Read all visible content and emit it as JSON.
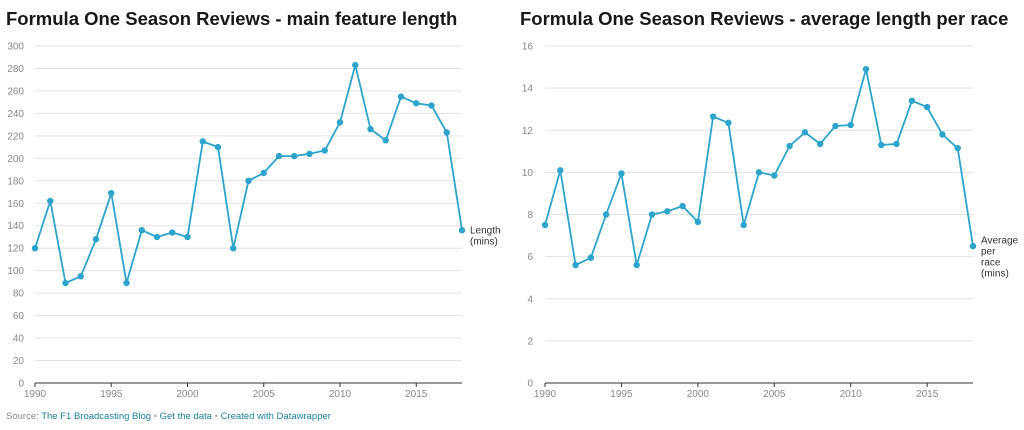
{
  "footer": {
    "source_prefix": "Source:",
    "source_name": "The F1 Broadcasting Blog",
    "separator": "•",
    "get_data": "Get the data",
    "created_with": "Created with Datawrapper"
  },
  "colors": {
    "line": "#2ea3cc",
    "grid": "#e3e3e3",
    "axis": "#333333",
    "tick_text": "#888888"
  },
  "chart_data": [
    {
      "type": "line",
      "title": "Formula One Season Reviews - main feature length",
      "x": [
        1990,
        1991,
        1992,
        1993,
        1994,
        1995,
        1996,
        1997,
        1998,
        1999,
        2000,
        2001,
        2002,
        2003,
        2004,
        2005,
        2006,
        2007,
        2008,
        2009,
        2010,
        2011,
        2012,
        2013,
        2014,
        2015,
        2016,
        2017,
        2018
      ],
      "series": [
        {
          "name": "Length (mins)",
          "label_lines": [
            "Length",
            "(mins)"
          ],
          "values": [
            120,
            162,
            89,
            95,
            128,
            169,
            89,
            136,
            130,
            134,
            130,
            215,
            210,
            120,
            180,
            187,
            202,
            202,
            204,
            207,
            232,
            283,
            226,
            216,
            255,
            249,
            247,
            223,
            136
          ]
        }
      ],
      "xlim": [
        1990,
        2018
      ],
      "ylim": [
        0,
        300
      ],
      "xticks": [
        1990,
        1995,
        2000,
        2005,
        2010,
        2015
      ],
      "yticks": [
        0,
        20,
        40,
        60,
        80,
        100,
        120,
        140,
        160,
        180,
        200,
        220,
        240,
        260,
        280,
        300
      ],
      "grid": true
    },
    {
      "type": "line",
      "title": "Formula One Season Reviews - average length per race",
      "x": [
        1990,
        1991,
        1992,
        1993,
        1994,
        1995,
        1996,
        1997,
        1998,
        1999,
        2000,
        2001,
        2002,
        2003,
        2004,
        2005,
        2006,
        2007,
        2008,
        2009,
        2010,
        2011,
        2012,
        2013,
        2014,
        2015,
        2016,
        2017,
        2018
      ],
      "series": [
        {
          "name": "Average per race (mins)",
          "label_lines": [
            "Average",
            "per",
            "race",
            "(mins)"
          ],
          "values": [
            7.5,
            10.1,
            5.6,
            5.95,
            8.0,
            9.95,
            5.6,
            8.0,
            8.15,
            8.4,
            7.65,
            12.65,
            12.35,
            7.5,
            10.0,
            9.85,
            11.25,
            11.9,
            11.35,
            12.2,
            12.25,
            14.9,
            11.3,
            11.35,
            13.4,
            13.1,
            11.8,
            11.15,
            6.5
          ]
        }
      ],
      "xlim": [
        1990,
        2018
      ],
      "ylim": [
        0,
        16
      ],
      "xticks": [
        1990,
        1995,
        2000,
        2005,
        2010,
        2015
      ],
      "yticks": [
        0,
        2,
        4,
        6,
        8,
        10,
        12,
        14,
        16
      ],
      "grid": true
    }
  ]
}
